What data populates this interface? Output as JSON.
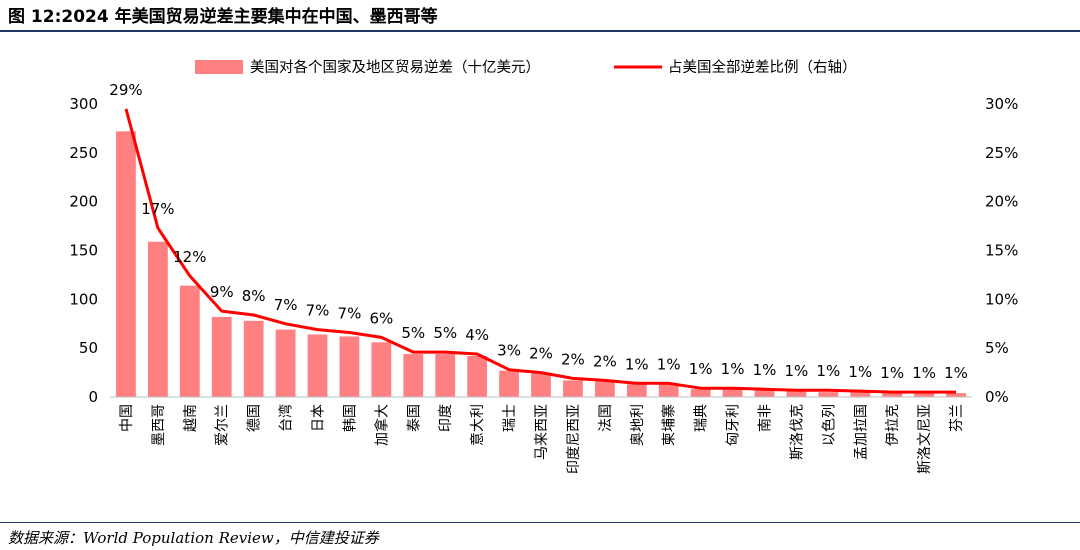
{
  "header": {
    "title": "图 12:2024 年美国贸易逆差主要集中在中国、墨西哥等"
  },
  "footer": {
    "source": "数据来源：World Population Review，中信建投证券"
  },
  "chart_data": {
    "type": "bar",
    "title": "图 12:2024 年美国贸易逆差主要集中在中国、墨西哥等",
    "categories": [
      "中国",
      "墨西哥",
      "越南",
      "爱尔兰",
      "德国",
      "台湾",
      "日本",
      "韩国",
      "加拿大",
      "泰国",
      "印度",
      "意大利",
      "瑞士",
      "马来西亚",
      "印度尼西亚",
      "法国",
      "奥地利",
      "柬埔寨",
      "瑞典",
      "匈牙利",
      "南非",
      "斯洛伐克",
      "以色列",
      "孟加拉国",
      "伊拉克",
      "斯洛文尼亚",
      "芬兰"
    ],
    "series": [
      {
        "name": "美国对各个国家及地区贸易逆差（十亿美元）",
        "type": "bar",
        "axis": "left",
        "color": "#ff8080",
        "values": [
          272,
          159,
          114,
          82,
          78,
          69,
          64,
          62,
          56,
          44,
          44,
          42,
          27,
          24,
          17,
          16,
          13,
          13,
          8,
          8,
          7,
          6,
          5,
          5,
          4,
          4,
          4
        ]
      },
      {
        "name": "占美国全部逆差比例（右轴）",
        "type": "line",
        "axis": "right",
        "color": "#ff0000",
        "values": [
          29.5,
          17.3,
          12.4,
          8.8,
          8.4,
          7.5,
          6.9,
          6.6,
          6.1,
          4.6,
          4.6,
          4.4,
          2.8,
          2.5,
          1.9,
          1.7,
          1.4,
          1.4,
          0.9,
          0.9,
          0.8,
          0.7,
          0.7,
          0.6,
          0.5,
          0.5,
          0.5
        ]
      }
    ],
    "data_labels": [
      "29%",
      "17%",
      "12%",
      "9%",
      "8%",
      "7%",
      "7%",
      "7%",
      "6%",
      "5%",
      "5%",
      "4%",
      "3%",
      "2%",
      "2%",
      "2%",
      "1%",
      "1%",
      "1%",
      "1%",
      "1%",
      "1%",
      "1%",
      "1%",
      "1%",
      "1%",
      "1%"
    ],
    "y_left": {
      "range": [
        0,
        300
      ],
      "ticks": [
        "0",
        "50",
        "100",
        "150",
        "200",
        "250",
        "300"
      ]
    },
    "y_right": {
      "range": [
        0,
        30
      ],
      "ticks": [
        "0%",
        "5%",
        "10%",
        "15%",
        "20%",
        "25%",
        "30%"
      ]
    },
    "grid": false,
    "legend_position": "top-center"
  }
}
